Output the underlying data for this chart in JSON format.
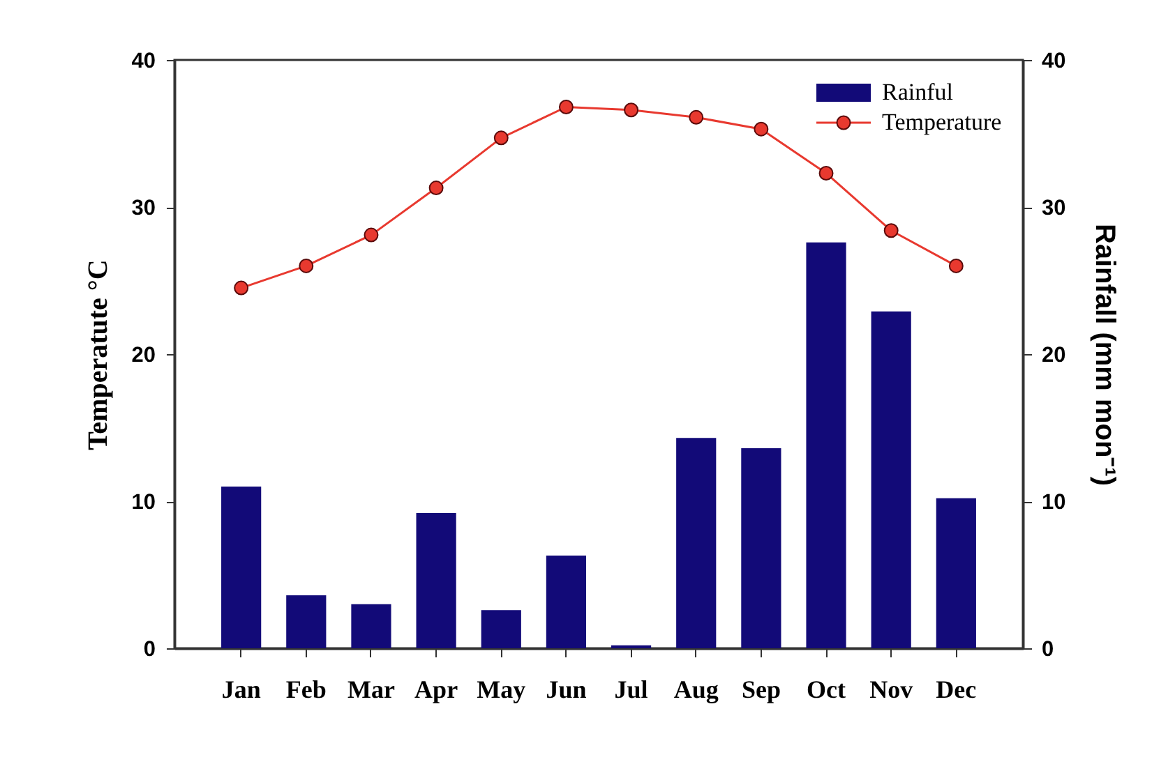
{
  "chart_data": {
    "type": "bar",
    "categories": [
      "Jan",
      "Feb",
      "Mar",
      "Apr",
      "May",
      "Jun",
      "Jul",
      "Aug",
      "Sep",
      "Oct",
      "Nov",
      "Dec"
    ],
    "ylabel": "Temperatute °C",
    "y2label": "Rainfall (mm mon⁻¹)",
    "ylim": [
      0,
      40
    ],
    "yticks": [
      0,
      10,
      20,
      30,
      40
    ],
    "y2lim": [
      0,
      40
    ],
    "y2ticks": [
      0,
      10,
      20,
      30,
      40
    ],
    "legend": "top right",
    "series": [
      {
        "name": "Rainful",
        "axis": "y2",
        "color": "#120a78",
        "values": [
          11.0,
          3.6,
          3.0,
          9.2,
          2.6,
          6.3,
          0.2,
          14.3,
          13.6,
          27.6,
          22.9,
          10.2
        ]
      },
      {
        "name": "Temperature",
        "type": "line",
        "color": "#e8392f",
        "marker": "circle",
        "values": [
          24.5,
          26.0,
          28.1,
          31.3,
          34.7,
          36.8,
          36.6,
          36.1,
          35.3,
          32.3,
          28.4,
          26.0
        ]
      }
    ]
  }
}
